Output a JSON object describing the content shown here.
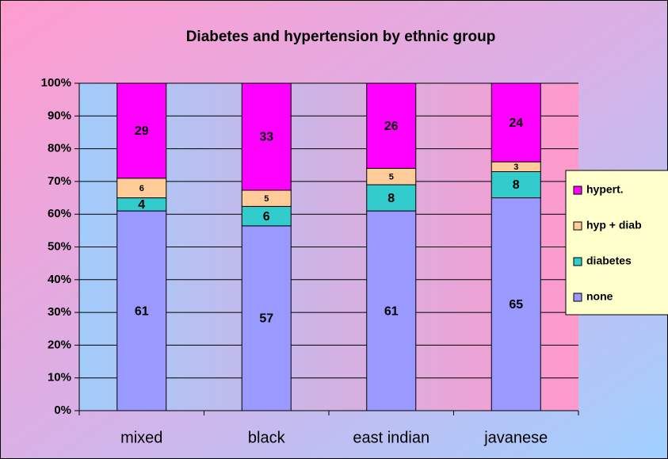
{
  "chart_data": {
    "type": "bar",
    "stacking": "percent",
    "title": "Diabetes and hypertension by ethnic group",
    "categories": [
      "mixed",
      "black",
      "east indian",
      "javanese"
    ],
    "series": [
      {
        "name": "none",
        "color": "#9999ff",
        "values": [
          61,
          57,
          61,
          65
        ]
      },
      {
        "name": "diabetes",
        "color": "#33cccc",
        "values": [
          4,
          6,
          8,
          8
        ]
      },
      {
        "name": "hyp + diab",
        "color": "#ffcc99",
        "values": [
          6,
          5,
          5,
          3
        ]
      },
      {
        "name": "hypert.",
        "color": "#ff00ff",
        "values": [
          29,
          33,
          26,
          24
        ]
      }
    ],
    "ylim": [
      0,
      100
    ],
    "yticks": [
      {
        "value": 0,
        "label": "0%"
      },
      {
        "value": 10,
        "label": "10%"
      },
      {
        "value": 20,
        "label": "20%"
      },
      {
        "value": 30,
        "label": "30%"
      },
      {
        "value": 40,
        "label": "40%"
      },
      {
        "value": 50,
        "label": "50%"
      },
      {
        "value": 60,
        "label": "60%"
      },
      {
        "value": 70,
        "label": "70%"
      },
      {
        "value": 80,
        "label": "80%"
      },
      {
        "value": 90,
        "label": "90%"
      },
      {
        "value": 100,
        "label": "100%"
      }
    ],
    "grid": true,
    "legend": "right"
  }
}
